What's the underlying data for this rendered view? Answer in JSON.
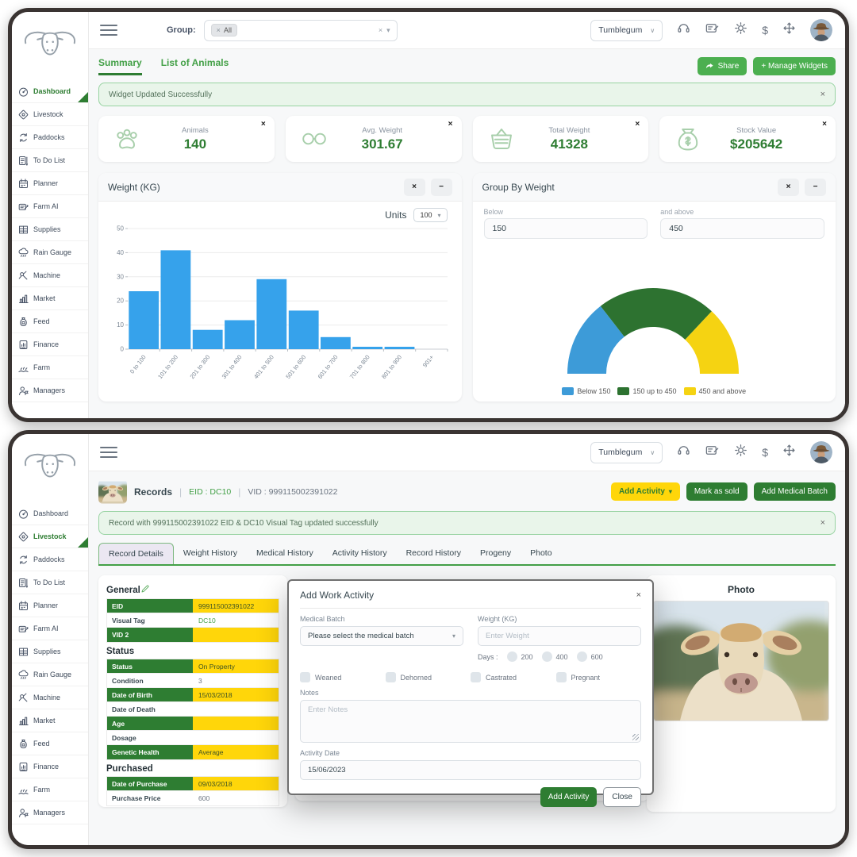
{
  "colors": {
    "primary_green": "#4caf50",
    "dark_green": "#2e7d32",
    "accent_yellow": "#ffd60a",
    "bar_blue": "#36a2eb",
    "gauge_blue": "#3d9bd8",
    "gauge_green": "#2d7230",
    "gauge_yellow": "#f5d312",
    "alert_bg": "#e9f5ea"
  },
  "sidebar": {
    "items": [
      {
        "label": "Dashboard",
        "icon": "dashboard-icon"
      },
      {
        "label": "Livestock",
        "icon": "livestock-icon"
      },
      {
        "label": "Paddocks",
        "icon": "paddocks-icon"
      },
      {
        "label": "To Do List",
        "icon": "todo-list-icon"
      },
      {
        "label": "Planner",
        "icon": "planner-icon"
      },
      {
        "label": "Farm AI",
        "icon": "farm-ai-icon"
      },
      {
        "label": "Supplies",
        "icon": "supplies-icon"
      },
      {
        "label": "Rain Gauge",
        "icon": "rain-gauge-icon"
      },
      {
        "label": "Machine",
        "icon": "machine-icon"
      },
      {
        "label": "Market",
        "icon": "market-icon"
      },
      {
        "label": "Feed",
        "icon": "feed-icon"
      },
      {
        "label": "Finance",
        "icon": "finance-icon"
      },
      {
        "label": "Farm",
        "icon": "farm-icon"
      },
      {
        "label": "Managers",
        "icon": "managers-icon"
      }
    ]
  },
  "header": {
    "group_label": "Group:",
    "group_chip": "All",
    "farm_name": "Tumblegum",
    "icons": [
      "headset-icon",
      "certificate-icon",
      "settings-icon",
      "dollar-icon",
      "move-icon"
    ]
  },
  "panel_top": {
    "active_sidebar": "Dashboard",
    "tabs": [
      {
        "label": "Summary",
        "active": true
      },
      {
        "label": "List of Animals",
        "active": false
      }
    ],
    "share_button": "Share",
    "manage_widgets_button": "+ Manage Widgets",
    "alert": "Widget Updated Successfully",
    "stats": [
      {
        "label": "Animals",
        "value": "140",
        "icon": "paw-icon"
      },
      {
        "label": "Avg. Weight",
        "value": "301.67",
        "icon": "scale-icon"
      },
      {
        "label": "Total Weight",
        "value": "41328",
        "icon": "basket-icon"
      },
      {
        "label": "Stock Value",
        "value": "$205642",
        "icon": "money-bag-icon"
      }
    ],
    "weight_widget": {
      "title": "Weight (KG)",
      "units_label": "Units",
      "units_value": "100"
    },
    "group_widget": {
      "title": "Group By Weight",
      "below_label": "Below",
      "below_value": "150",
      "above_label": "and above",
      "above_value": "450"
    }
  },
  "chart_data": [
    {
      "type": "bar",
      "title": "Weight (KG)",
      "categories": [
        "0 to 100",
        "101 to 200",
        "201 to 300",
        "301 to 400",
        "401 to 500",
        "501 to 600",
        "601 to 700",
        "701 to 800",
        "801 to 900",
        "901+"
      ],
      "values": [
        24,
        41,
        8,
        12,
        29,
        16,
        5,
        1,
        1,
        0
      ],
      "xlabel": "",
      "ylabel": "",
      "ylim": [
        0,
        50
      ],
      "yticks": [
        0,
        10,
        20,
        30,
        40,
        50
      ],
      "bar_color": "#36a2eb",
      "grid": true,
      "legend_position": "none"
    },
    {
      "type": "pie",
      "variant": "half-donut-gauge",
      "title": "Group By Weight",
      "segments": [
        {
          "label": "Below 150",
          "value": 29,
          "color": "#3d9bd8"
        },
        {
          "label": "150 up to 450",
          "value": 45,
          "color": "#2d7230"
        },
        {
          "label": "450 and above",
          "value": 26,
          "color": "#f5d312"
        }
      ],
      "unit": "percent (estimated from arc angles)",
      "legend_position": "bottom"
    }
  ],
  "panel_bottom": {
    "active_sidebar": "Livestock",
    "record_header": {
      "title": "Records",
      "eid": "EID : DC10",
      "vid": "VID : 999115002391022"
    },
    "action_buttons": [
      {
        "label": "Add Activity",
        "style": "yellow",
        "dropdown": true
      },
      {
        "label": "Mark as sold",
        "style": "green",
        "dropdown": false
      },
      {
        "label": "Add Medical Batch",
        "style": "green",
        "dropdown": false
      }
    ],
    "alert": "Record with 999115002391022 EID & DC10 Visual Tag updated successfully",
    "tabs": [
      {
        "label": "Record Details",
        "active": true
      },
      {
        "label": "Weight History",
        "active": false
      },
      {
        "label": "Medical History",
        "active": false
      },
      {
        "label": "Activity History",
        "active": false
      },
      {
        "label": "Record History",
        "active": false
      },
      {
        "label": "Progeny",
        "active": false
      },
      {
        "label": "Photo",
        "active": false
      }
    ],
    "details": {
      "sections": [
        {
          "title": "General",
          "has_edit_icon": true,
          "rows": [
            {
              "label": "EID",
              "value": "999115002391022",
              "highlight": true
            },
            {
              "label": "Visual Tag",
              "value": "DC10",
              "highlight": false,
              "value_green": true
            },
            {
              "label": "VID 2",
              "value": "",
              "highlight": true
            }
          ]
        },
        {
          "title": "Status",
          "has_edit_icon": false,
          "rows": [
            {
              "label": "Status",
              "value": "On Property",
              "highlight": true
            },
            {
              "label": "Condition",
              "value": "3",
              "highlight": false
            },
            {
              "label": "Date of Birth",
              "value": "15/03/2018",
              "highlight": true
            },
            {
              "label": "Date of Death",
              "value": "",
              "highlight": false
            },
            {
              "label": "Age",
              "value": "",
              "highlight": true
            },
            {
              "label": "Dosage",
              "value": "",
              "highlight": false
            },
            {
              "label": "Genetic Health",
              "value": "Average",
              "highlight": true
            }
          ]
        },
        {
          "title": "Purchased",
          "has_edit_icon": false,
          "rows": [
            {
              "label": "Date of Purchase",
              "value": "09/03/2018",
              "highlight": true
            },
            {
              "label": "Purchase Price",
              "value": "600",
              "highlight": false
            }
          ]
        }
      ]
    },
    "modal": {
      "title": "Add Work Activity",
      "medical_batch_label": "Medical Batch",
      "medical_batch_placeholder": "Please select the medical batch",
      "weight_label": "Weight (KG)",
      "weight_placeholder": "Enter Weight",
      "days_label": "Days :",
      "days_options": [
        "200",
        "400",
        "600"
      ],
      "checkboxes": [
        "Weaned",
        "Dehorned",
        "Castrated",
        "Pregnant"
      ],
      "notes_label": "Notes",
      "notes_placeholder": "Enter Notes",
      "activity_date_label": "Activity Date",
      "activity_date_value": "15/06/2023",
      "submit_label": "Add Activity",
      "close_label": "Close"
    },
    "photo_title": "Photo"
  }
}
